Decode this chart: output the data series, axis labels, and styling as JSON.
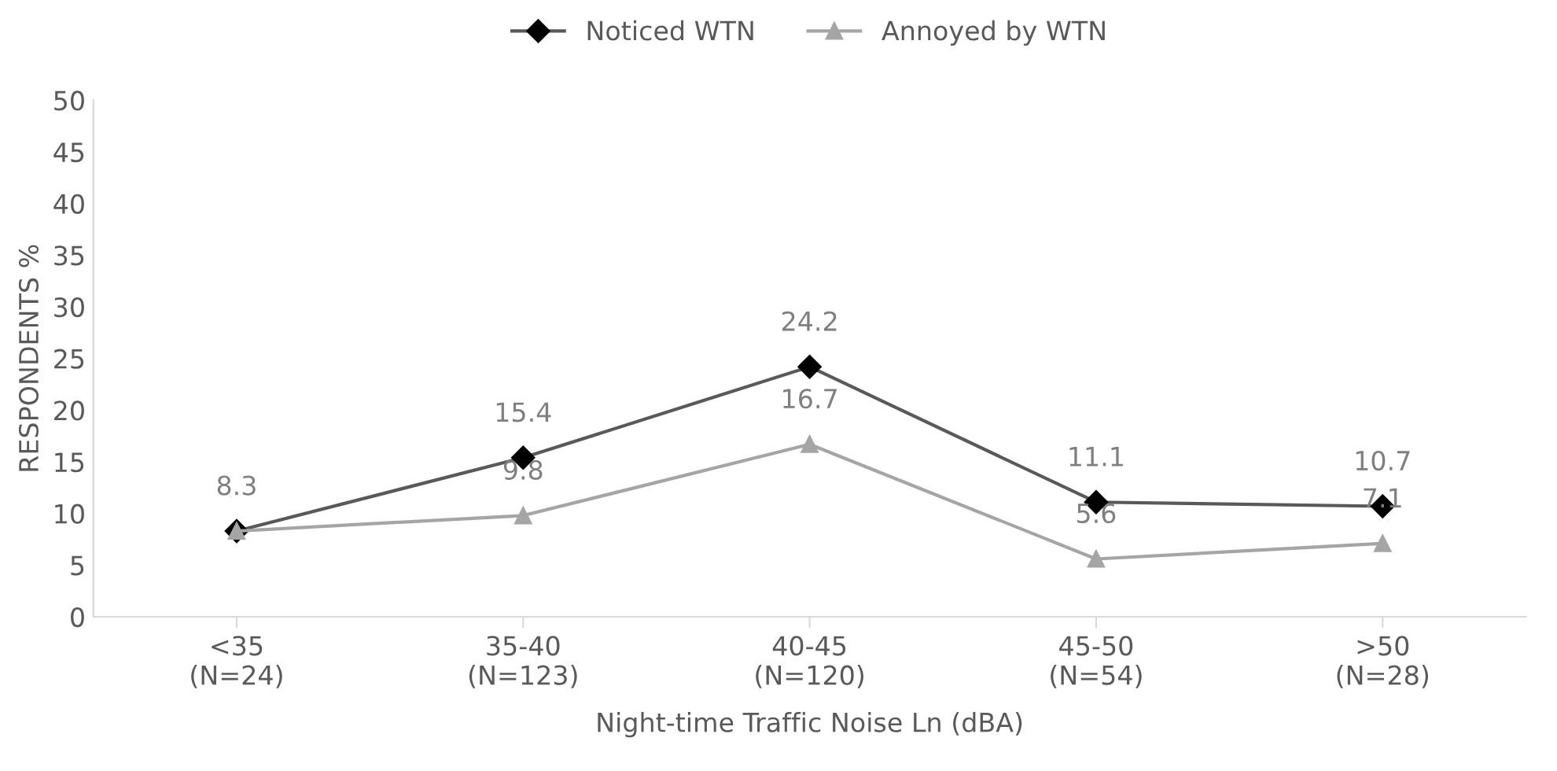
{
  "chart_data": {
    "type": "line",
    "xlabel": "Night-time Traffic Noise Ln (dBA)",
    "ylabel": "RESPONDENTS %",
    "categories": [
      "<35\n(N=24)",
      "35-40\n(N=123)",
      "40-45\n(N=120)",
      "45-50\n(N=54)",
      ">50\n(N=28)"
    ],
    "series": [
      {
        "name": "Noticed WTN",
        "color": "#595959",
        "marker": "diamond",
        "values": [
          8.3,
          15.4,
          24.2,
          11.1,
          10.7
        ],
        "value_labels": [
          "8.3",
          "15.4",
          "24.2",
          "11.1",
          "10.7"
        ]
      },
      {
        "name": "Annoyed by WTN",
        "color": "#a5a5a5",
        "marker": "triangle",
        "values": [
          8.3,
          9.8,
          16.7,
          5.6,
          7.1
        ],
        "value_labels": [
          null,
          "9.8",
          "16.7",
          "5.6",
          "7.1"
        ]
      }
    ],
    "ylim": [
      0,
      50
    ],
    "yticks": [
      0,
      5,
      10,
      15,
      20,
      25,
      30,
      35,
      40,
      45,
      50
    ],
    "grid": false,
    "legend": "top"
  }
}
